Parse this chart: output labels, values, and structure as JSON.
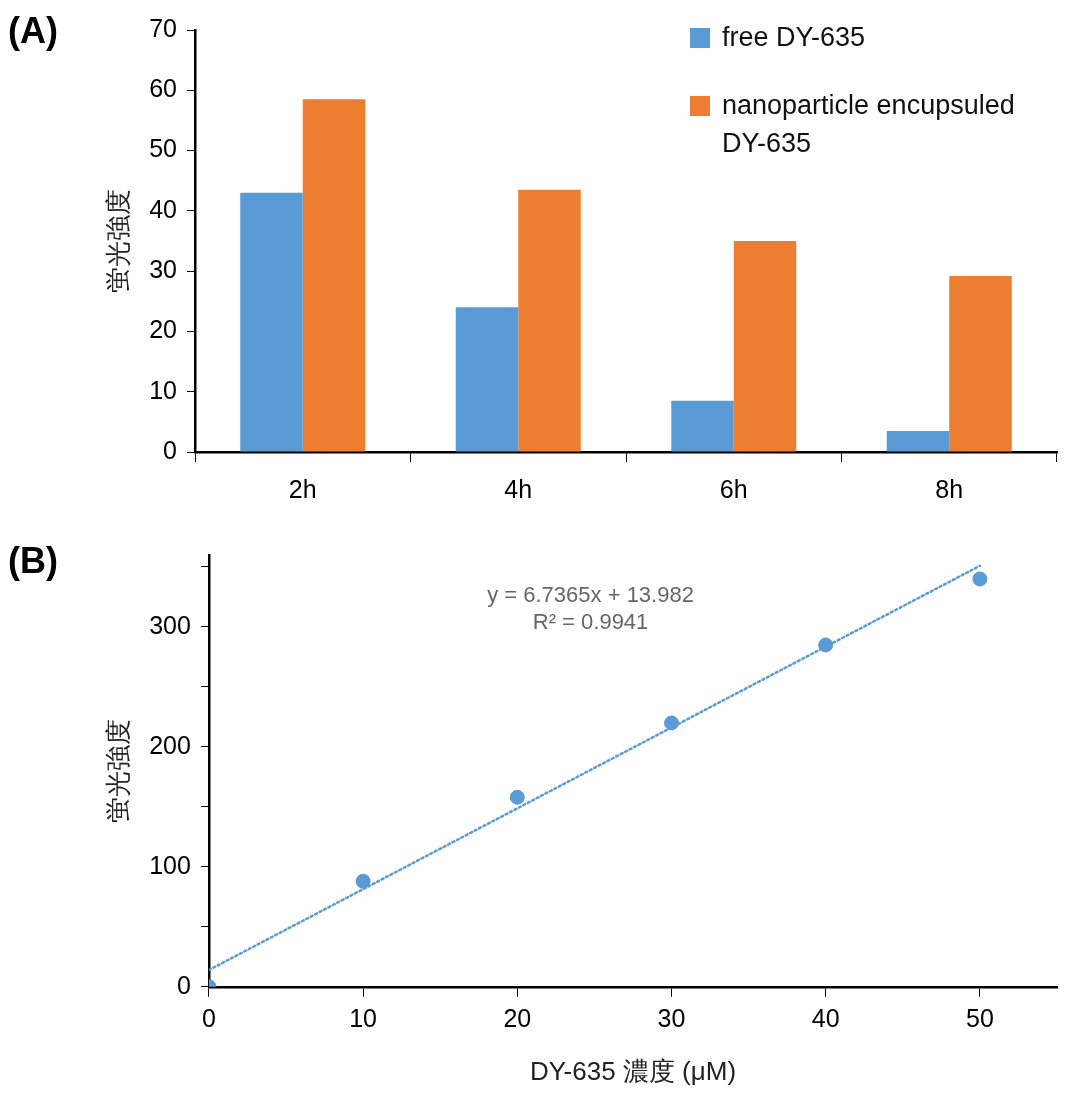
{
  "chart_data": [
    {
      "type": "bar",
      "title": "(A)",
      "ylabel": "蛍光強度",
      "categories": [
        "2h",
        "4h",
        "6h",
        "8h"
      ],
      "series": [
        {
          "name": "free DY-635",
          "color": "#5b9bd5",
          "values": [
            43,
            24,
            8.5,
            3.5
          ]
        },
        {
          "name": "nanoparticle encupsuled DY-635",
          "color": "#ed7d31",
          "values": [
            58.5,
            43.5,
            35,
            29.2
          ]
        }
      ],
      "ylim": [
        0,
        70
      ],
      "yticks": [
        0,
        10,
        20,
        30,
        40,
        50,
        60,
        70
      ],
      "grid": false,
      "legend": "top right"
    },
    {
      "type": "scatter",
      "title": "(B)",
      "ylabel": "蛍光強度",
      "xlabel": "DY-635 濃度 (μM)",
      "series": [
        {
          "color": "#5b9bd5",
          "x": [
            0,
            10,
            20,
            30,
            40,
            50
          ],
          "values": [
            0,
            88,
            158,
            220,
            285,
            340
          ],
          "marker": "circle"
        },
        {
          "type": "line",
          "color": "#5b9bd5",
          "x": [
            0,
            50
          ],
          "values": [
            14,
            351
          ],
          "line_style": "dotted",
          "marker": "none"
        }
      ],
      "xlim": [
        0,
        55
      ],
      "xticks": [
        0,
        10,
        20,
        30,
        40,
        50
      ],
      "ylim": [
        0,
        360
      ],
      "yticks": [
        0,
        {
          "value": 50,
          "label": null
        },
        100,
        {
          "value": 150,
          "label": null
        },
        200,
        {
          "value": 250,
          "label": null
        },
        300,
        {
          "value": 350,
          "label": null
        }
      ],
      "grid": false,
      "legend": false,
      "annotations": [
        "y = 6.7365x + 13.982",
        "R² = 0.9941"
      ]
    }
  ]
}
